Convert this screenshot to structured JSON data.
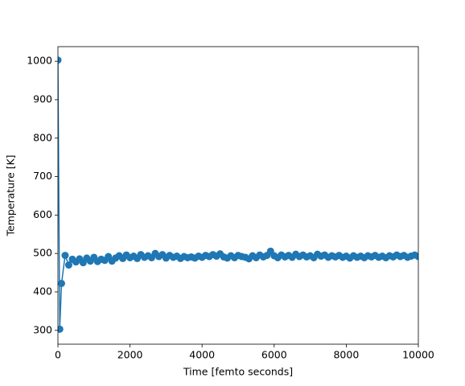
{
  "chart_data": {
    "type": "line",
    "xlabel": "Time [femto seconds]",
    "ylabel": "Temperature [K]",
    "x": [
      0,
      50,
      100,
      200,
      300,
      400,
      500,
      600,
      700,
      800,
      900,
      1000,
      1100,
      1200,
      1300,
      1400,
      1500,
      1600,
      1700,
      1800,
      1900,
      2000,
      2100,
      2200,
      2300,
      2400,
      2500,
      2600,
      2700,
      2800,
      2900,
      3000,
      3100,
      3200,
      3300,
      3400,
      3500,
      3600,
      3700,
      3800,
      3900,
      4000,
      4100,
      4200,
      4300,
      4400,
      4500,
      4600,
      4700,
      4800,
      4900,
      5000,
      5100,
      5200,
      5300,
      5400,
      5500,
      5600,
      5700,
      5800,
      5900,
      6000,
      6100,
      6200,
      6300,
      6400,
      6500,
      6600,
      6700,
      6800,
      6900,
      7000,
      7100,
      7200,
      7300,
      7400,
      7500,
      7600,
      7700,
      7800,
      7900,
      8000,
      8100,
      8200,
      8300,
      8400,
      8500,
      8600,
      8700,
      8800,
      8900,
      9000,
      9100,
      9200,
      9300,
      9400,
      9500,
      9600,
      9700,
      9800,
      9900,
      10000
    ],
    "series": [
      {
        "color": "#1f77b4",
        "values": [
          1003,
          303,
          422,
          495,
          470,
          485,
          478,
          486,
          476,
          488,
          480,
          490,
          479,
          485,
          482,
          492,
          480,
          488,
          494,
          487,
          496,
          489,
          493,
          487,
          497,
          490,
          494,
          489,
          500,
          492,
          497,
          488,
          495,
          490,
          493,
          487,
          492,
          489,
          491,
          488,
          493,
          490,
          495,
          492,
          497,
          493,
          499,
          491,
          488,
          494,
          489,
          495,
          492,
          490,
          486,
          494,
          489,
          496,
          491,
          495,
          506,
          494,
          489,
          496,
          491,
          495,
          490,
          498,
          492,
          496,
          491,
          494,
          489,
          498,
          493,
          496,
          490,
          494,
          491,
          495,
          490,
          493,
          488,
          494,
          490,
          493,
          489,
          494,
          491,
          495,
          490,
          493,
          489,
          494,
          491,
          496,
          492,
          495,
          490,
          493,
          496,
          492
        ]
      }
    ],
    "xlim": [
      0,
      10000
    ],
    "xticks": [
      0,
      2000,
      4000,
      6000,
      8000,
      10000
    ],
    "ylim": [
      264,
      1038
    ],
    "yticks": [
      300,
      400,
      500,
      600,
      700,
      800,
      900,
      1000
    ],
    "grid": false
  }
}
